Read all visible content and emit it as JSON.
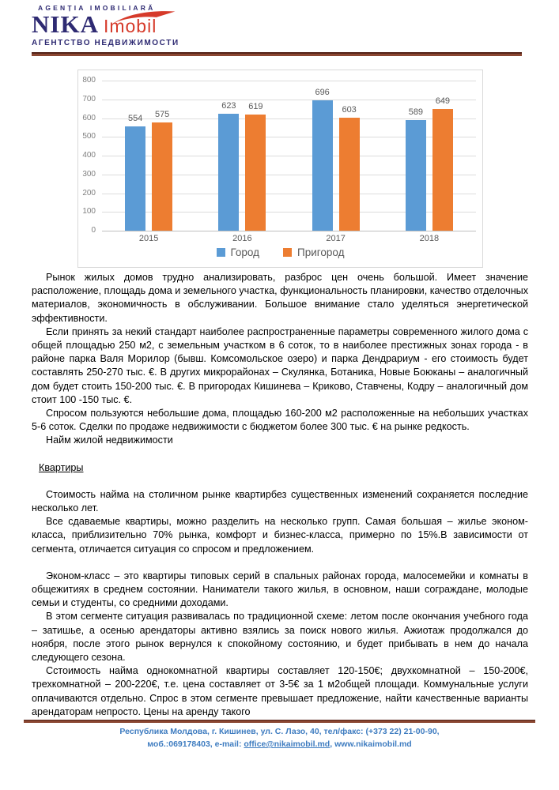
{
  "header": {
    "tagline_top": "AGENȚIA IMOBILIARĂ",
    "brand_main": "NIKA",
    "brand_sub": "Imobil",
    "tagline_bottom": "АГЕНТСТВО НЕДВИЖИМОСТИ",
    "colors": {
      "navy": "#2e2a72",
      "red": "#d63a2a",
      "rule_brown": "#8a4631"
    }
  },
  "chart_data": {
    "type": "bar",
    "title": "",
    "xlabel": "",
    "ylabel": "",
    "categories": [
      "2015",
      "2016",
      "2017",
      "2018"
    ],
    "series": [
      {
        "name": "Город",
        "color": "#5b9bd5",
        "values": [
          554,
          623,
          696,
          589
        ]
      },
      {
        "name": "Пригород",
        "color": "#ed7d31",
        "values": [
          575,
          619,
          603,
          649
        ]
      }
    ],
    "ylim": [
      0,
      800
    ],
    "ytick_step": 100,
    "grid": true,
    "legend_position": "bottom",
    "label_color": "#595959",
    "tick_color": "#808080"
  },
  "body": {
    "paragraphs": [
      "Рынок жилых домов трудно анализировать, разброс цен очень большой. Имеет значение расположение, площадь дома и земельного участка, функциональность планировки, качество отделочных материалов, экономичность в обслуживании. Большое внимание стало уделяться энергетической эффективности.",
      "Если принять за некий стандарт наиболее распространенные параметры современного жилого дома с общей площадью 250 м2, с земельным участком в 6 соток, то в наиболее престижных зонах города - в районе парка Валя Морилор (бывш. Комсомольское озеро) и парка Дендрариум - его стоимость будет составлять 250-270 тыс. €. В других микрорайонах – Скулянка, Ботаника, Новые Боюканы – аналогичный дом будет стоить 150-200 тыс. €. В пригородах Кишинева – Криково, Ставчены, Кодру – аналогичный дом стоит 100 -150 тыс. €.",
      "Спросом пользуются небольшие дома, площадью 160-200 м2 расположенные на небольших участках 5-6 соток. Сделки по продаже недвижимости с бюджетом более 300 тыс. € на рынке редкость.",
      "Найм жилой недвижимости",
      "Квартиры",
      "Стоимость найма на столичном рынке квартирбез существенных изменений сохраняется последние несколько лет.",
      "Все сдаваемые квартиры, можно разделить на несколько групп. Самая большая – жилье эконом-класса, приблизительно 70% рынка, комфорт и бизнес-класса, примерно по 15%.В зависимости от сегмента, отличается ситуация со спросом и предложением.",
      "Эконом-класс – это квартиры типовых серий в спальных районах города, малосемейки и комнаты в общежитиях в среднем состоянии. Наниматели такого жилья, в основном, наши сограждане, молодые семьи и студенты, со средними доходами.",
      "В этом сегменте ситуация развивалась по традиционной схеме: летом после окончания учебного года – затишье, а осенью арендаторы активно взялись за поиск нового жилья. Ажиотаж продолжался до ноября, после этого рынок вернулся к спокойному состоянию, и будет прибывать в нем до начала следующего сезона.",
      "Сстоимость найма однокомнатной квартиры составляет 120-150€; двухкомнатной – 150-200€, трехкомнатной – 200-220€, т.е. цена составляет от 3-5€ за 1 м2общей площади. Коммунальные услуги оплачиваются отдельно.   Спрос в этом сегменте превышает предложение, найти качественные варианты арендаторам непросто. Цены на аренду такого"
    ]
  },
  "footer": {
    "line1": "Республика Молдова, г. Кишинев, ул. С. Лазо, 40, тел/факс: (+373 22) 21-00-90,",
    "line2_prefix": "моб.:069178403, e-mail: ",
    "email": "office@nikaimobil.md",
    "line2_suffix": ", www.nikaimobil.md",
    "text_color": "#3e7cc0"
  }
}
